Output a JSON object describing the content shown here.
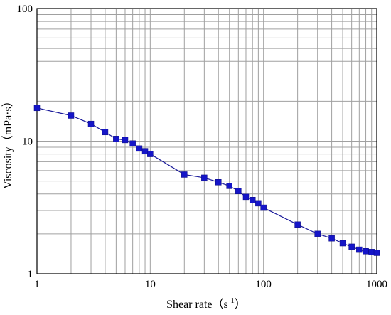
{
  "chart_data": {
    "type": "scatter",
    "xlabel": "Shear rate（s",
    "xlabel_sup": "-1",
    "xlabel_end": "）",
    "ylabel": "Viscosity（mPa·s）",
    "x_scale": "log",
    "y_scale": "log",
    "xlim": [
      1,
      1000
    ],
    "ylim": [
      1,
      100
    ],
    "x_ticks": [
      "1",
      "10",
      "100",
      "1000"
    ],
    "y_ticks": [
      "1",
      "10",
      "100"
    ],
    "grid": true,
    "marker_color": "#1515c8",
    "line_color": "#1a1a9a",
    "series": [
      {
        "x": [
          1,
          2,
          3,
          4,
          5,
          6,
          7,
          8,
          9,
          10,
          20,
          30,
          40,
          50,
          60,
          70,
          80,
          90,
          100,
          200,
          300,
          400,
          500,
          600,
          700,
          800,
          900,
          1000
        ],
        "y": [
          17.8,
          15.6,
          13.5,
          11.7,
          10.4,
          10.2,
          9.6,
          8.8,
          8.4,
          8.0,
          5.6,
          5.3,
          4.9,
          4.6,
          4.2,
          3.8,
          3.6,
          3.4,
          3.15,
          2.35,
          2.0,
          1.85,
          1.7,
          1.6,
          1.52,
          1.48,
          1.46,
          1.44
        ]
      }
    ]
  }
}
